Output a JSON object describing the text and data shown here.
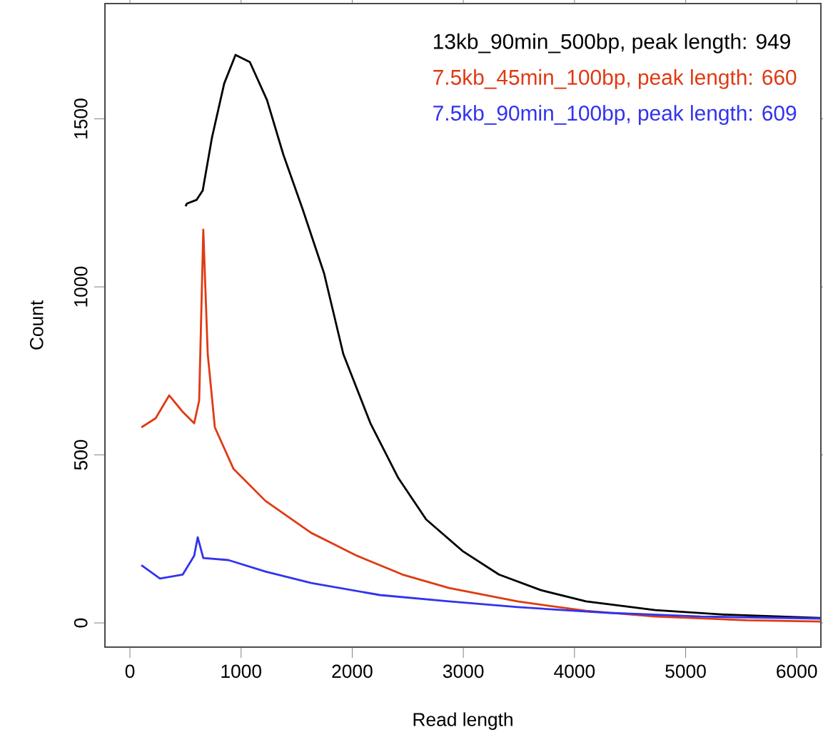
{
  "chart_data": {
    "type": "line",
    "xlabel": "Read length",
    "ylabel": "Count",
    "xlim": [
      -225,
      6217
    ],
    "ylim": [
      -72,
      1843
    ],
    "xticks": [
      0,
      1000,
      2000,
      3000,
      4000,
      5000,
      6000
    ],
    "yticks": [
      0,
      500,
      1000,
      1500
    ],
    "grid": false,
    "legend": "top right",
    "marker": "none",
    "line_style": "solid",
    "series": [
      {
        "name": "13kb_90min_500bp, peak length:  949",
        "color": "#000000",
        "x": [
          500,
          514,
          600,
          655,
          738,
          848,
          950,
          1079,
          1233,
          1381,
          1554,
          1747,
          1920,
          2164,
          2415,
          2665,
          2993,
          3320,
          3693,
          4104,
          4727,
          5344,
          6210
        ],
        "values": [
          1240,
          1248,
          1259,
          1287,
          1444,
          1605,
          1690,
          1669,
          1556,
          1393,
          1231,
          1040,
          800,
          594,
          431,
          308,
          214,
          144,
          98,
          64,
          38,
          25,
          15
        ]
      },
      {
        "name": "7.5kb_45min_100bp, peak length:  660",
        "color": "#e03a13",
        "x": [
          103,
          231,
          353,
          475,
          578,
          623,
          660,
          700,
          764,
          931,
          1220,
          1631,
          2042,
          2453,
          2871,
          3487,
          4104,
          4727,
          5549,
          6210
        ],
        "values": [
          582,
          609,
          677,
          628,
          594,
          662,
          1170,
          800,
          582,
          459,
          363,
          268,
          200,
          144,
          104,
          64,
          36,
          19,
          8,
          4
        ]
      },
      {
        "name": "7.5kb_90min_100bp, peak length:  609",
        "color": "#3333ee",
        "x": [
          103,
          270,
          475,
          578,
          610,
          660,
          886,
          1220,
          1631,
          2248,
          2871,
          3487,
          4310,
          5138,
          6210
        ],
        "values": [
          172,
          132,
          144,
          200,
          255,
          193,
          187,
          153,
          119,
          83,
          64,
          47,
          30,
          19,
          13
        ]
      }
    ]
  }
}
